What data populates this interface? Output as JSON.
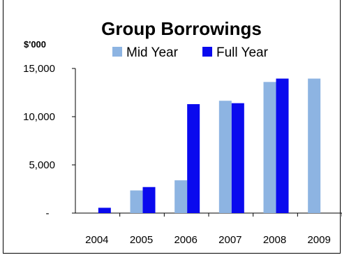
{
  "chart_data": {
    "type": "bar",
    "title": "Group Borrowings",
    "unit_label": "$'000",
    "categories": [
      "2004",
      "2005",
      "2006",
      "2007",
      "2008",
      "2009"
    ],
    "series": [
      {
        "name": "Mid Year",
        "color": "#8db4e2",
        "values": [
          null,
          2350,
          3400,
          11650,
          13600,
          13950
        ]
      },
      {
        "name": "Full Year",
        "color": "#0a0aee",
        "values": [
          550,
          2700,
          11300,
          11400,
          13950,
          null
        ]
      }
    ],
    "y_ticks": [
      {
        "value": 0,
        "label": "-"
      },
      {
        "value": 5000,
        "label": "5,000"
      },
      {
        "value": 10000,
        "label": "10,000"
      },
      {
        "value": 15000,
        "label": "15,000"
      }
    ],
    "ylim": [
      0,
      15000
    ],
    "grid": false,
    "legend_position": "top"
  }
}
